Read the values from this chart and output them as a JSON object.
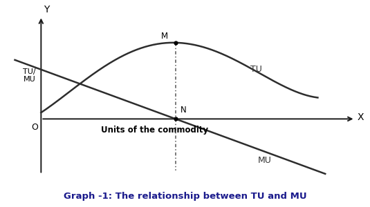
{
  "title": "Graph -1: The relationship between TU and MU",
  "title_fontsize": 9.5,
  "title_color": "#1a1a8c",
  "ylabel": "Y",
  "xlabel": "X",
  "tu_label": "TU",
  "mu_label": "MU",
  "tu_mu_ylabel": "TU/\nMU",
  "x_axis_label": "Units of the commodity",
  "point_M_label": "M",
  "point_N_label": "N",
  "origin_label": "O",
  "bg_color": "#ffffff",
  "curve_color": "#2d2d2d",
  "line_color": "#1a1a1a",
  "dashed_color": "#555555",
  "x_peak": 4.8,
  "origin_x": 1.2,
  "origin_y": 0.0,
  "xlim_min": 0.3,
  "xlim_max": 9.8,
  "ylim_min": -3.2,
  "ylim_max": 5.6
}
